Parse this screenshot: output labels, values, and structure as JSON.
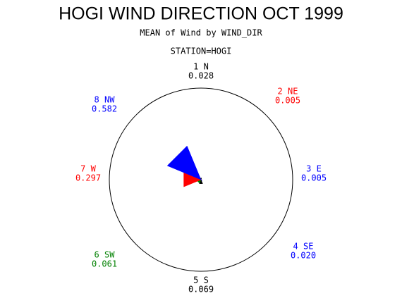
{
  "chart_data": {
    "type": "star",
    "title": "HOGI WIND DIRECTION OCT 1999",
    "subtitle": "MEAN of Wind by WIND_DIR",
    "group_label": "STATION=HOGI",
    "categories": [
      "1 N",
      "2 NE",
      "3 E",
      "4 SE",
      "5 S",
      "6 SW",
      "7 W",
      "8 NW"
    ],
    "values": [
      0.028,
      0.005,
      0.005,
      0.02,
      0.069,
      0.061,
      0.297,
      0.582
    ],
    "value_labels": [
      "0.028",
      "0.005",
      "0.005",
      "0.020",
      "0.069",
      "0.061",
      "0.297",
      "0.582"
    ],
    "colors": [
      "#000000",
      "#ff0000",
      "#0000ff",
      "#0000ff",
      "#000000",
      "#008000",
      "#ff0000",
      "#0000ff"
    ]
  }
}
